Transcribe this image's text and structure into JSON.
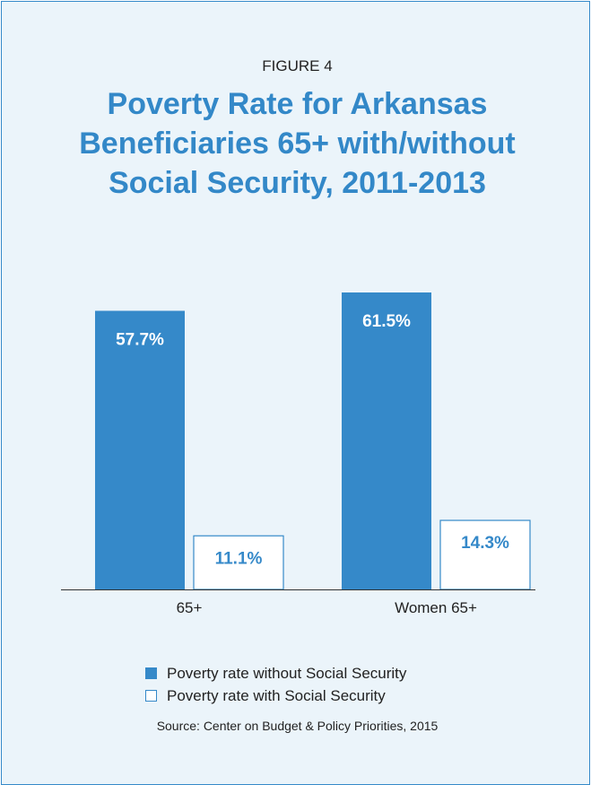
{
  "figure": {
    "label": "FIGURE 4",
    "title_lines": [
      "Poverty Rate for Arkansas",
      "Beneficiaries 65+ with/without",
      "Social Security, 2011-2013"
    ],
    "source": "Source: Center on Budget & Policy Priorities, 2015"
  },
  "colors": {
    "without": "#3589c9",
    "with_fill": "#ffffff",
    "with_border": "#3589c9",
    "background": "#ebf4fa",
    "title": "#3388c8"
  },
  "chart_data": {
    "type": "bar",
    "categories": [
      "65+",
      "Women 65+"
    ],
    "series": [
      {
        "name": "Poverty rate without Social Security",
        "values": [
          57.7,
          61.5
        ],
        "labels": [
          "57.7%",
          "61.5%"
        ]
      },
      {
        "name": "Poverty rate with Social Security",
        "values": [
          11.1,
          14.3
        ],
        "labels": [
          "11.1%",
          "14.3%"
        ]
      }
    ],
    "ylim": [
      0,
      61.5
    ],
    "grid": false,
    "legend_position": "bottom"
  }
}
